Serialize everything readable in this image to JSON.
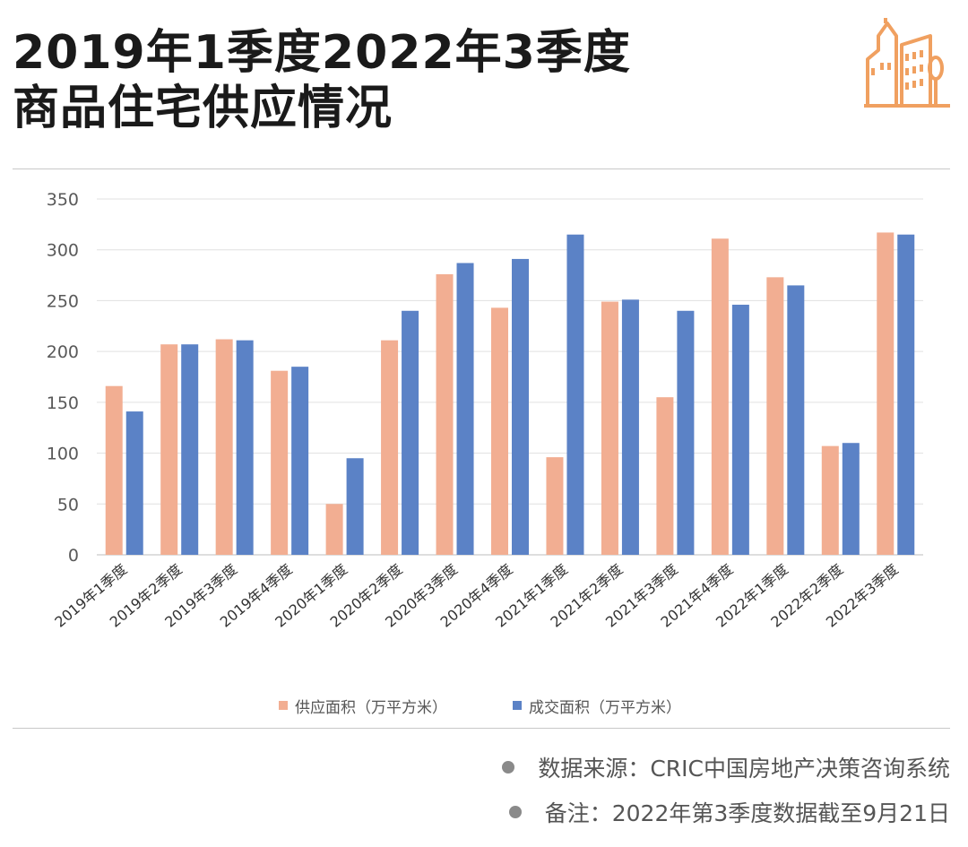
{
  "header": {
    "title_line1": "2019年1季度2022年3季度",
    "title_line2": "商品住宅供应情况"
  },
  "logo": {
    "icon": "city-buildings-icon",
    "color": "#f0a060"
  },
  "chart_data": {
    "type": "bar",
    "categories": [
      "2019年1季度",
      "2019年2季度",
      "2019年3季度",
      "2019年4季度",
      "2020年1季度",
      "2020年2季度",
      "2020年3季度",
      "2020年4季度",
      "2021年1季度",
      "2021年2季度",
      "2021年3季度",
      "2021年4季度",
      "2022年1季度",
      "2022年2季度",
      "2022年3季度"
    ],
    "series": [
      {
        "name": "供应面积（万平方米）",
        "color": "#f2ae92",
        "values": [
          166,
          207,
          212,
          181,
          50,
          211,
          276,
          243,
          96,
          249,
          155,
          311,
          273,
          107,
          317
        ]
      },
      {
        "name": "成交面积（万平方米）",
        "color": "#5b82c6",
        "values": [
          141,
          207,
          211,
          185,
          95,
          240,
          287,
          291,
          315,
          251,
          240,
          246,
          265,
          110,
          315
        ]
      }
    ],
    "ylim": [
      0,
      350
    ],
    "yticks": [
      0,
      50,
      100,
      150,
      200,
      250,
      300,
      350
    ],
    "ytick_labels": [
      "0",
      "50",
      "100",
      "150",
      "200",
      "250",
      "300",
      "350"
    ],
    "grid": true,
    "legend_position": "bottom"
  },
  "notes": {
    "source": "数据来源：CRIC中国房地产决策咨询系统",
    "remark": "备注：2022年第3季度数据截至9月21日"
  }
}
